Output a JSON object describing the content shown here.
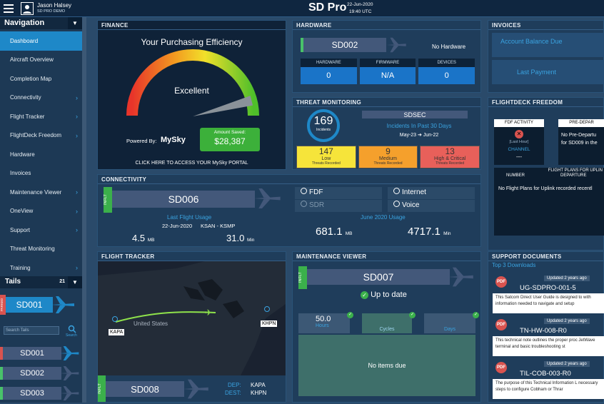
{
  "header": {
    "user_name": "Jason Halsey",
    "user_sub": "SD PRO DEMO",
    "brand": "SD Pro",
    "date": "22-Jun-2020",
    "time": "19:40 UTC"
  },
  "sidebar": {
    "title": "Navigation",
    "items": [
      {
        "label": "Dashboard",
        "active": true
      },
      {
        "label": "Aircraft Overview"
      },
      {
        "label": "Completion Map"
      },
      {
        "label": "Connectivity",
        "chev": true
      },
      {
        "label": "Flight Tracker",
        "chev": true
      },
      {
        "label": "FlightDeck Freedom",
        "chev": true
      },
      {
        "label": "Hardware"
      },
      {
        "label": "Invoices"
      },
      {
        "label": "Maintenance Viewer",
        "chev": true
      },
      {
        "label": "OneView",
        "chev": true
      },
      {
        "label": "Support",
        "chev": true
      },
      {
        "label": "Threat Monitoring"
      },
      {
        "label": "Training",
        "chev": true
      }
    ],
    "tails_title": "Tails",
    "tails_count": "21",
    "parked_tail": "SD001",
    "parked_label": "PARKED",
    "search_placeholder": "Search Tails",
    "search_label": "Search",
    "tails": [
      "SD001",
      "SD002",
      "SD003"
    ]
  },
  "finance": {
    "title": "FINANCE",
    "heading": "Your Purchasing Efficiency",
    "rating": "Excellent",
    "powered": "Powered By:",
    "brand": "MySky",
    "saved_label": "Amount Saved:",
    "saved_value": "$28,387",
    "portal": "CLICK HERE TO ACCESS YOUR MySky PORTAL",
    "gauge_level": 0.92
  },
  "hardware": {
    "title": "HARDWARE",
    "tail": "SD002",
    "status": "No Hardware",
    "cols": [
      {
        "h": "HARDWARE",
        "v": "0"
      },
      {
        "h": "FIRMWARE",
        "v": "N/A"
      },
      {
        "h": "DEVICES",
        "v": "0"
      }
    ]
  },
  "invoices": {
    "title": "INVOICES",
    "balance": "Account Balance Due",
    "last_payment": "Last Payment"
  },
  "threat": {
    "title": "THREAT MONITORING",
    "count": "169",
    "count_label": "Incidents",
    "tail": "SDSEC",
    "period": "Incidents In Past 30 Days",
    "from": "May-23",
    "to": "Jun-22",
    "levels": [
      {
        "v": "147",
        "l": "Low",
        "s": "Threats Recorded",
        "c": "#f6e43a"
      },
      {
        "v": "9",
        "l": "Medium",
        "s": "Threats Recorded",
        "c": "#f5a02c"
      },
      {
        "v": "13",
        "l": "High & Critical",
        "s": "Threats Recorded",
        "c": "#e8605a"
      }
    ]
  },
  "fdf": {
    "title": "FLIGHTDECK FREEDOM",
    "activity": "FDF ACTIVITY",
    "last_hour": "[Last Hour]",
    "channel": "CHANNEL",
    "channel_val": "---",
    "pre": "PRE-DEPAR",
    "pre_text": "No Pre-Departu for SD009 in the",
    "plans": "FLIGHT PLANS FOR UPLIN",
    "col_number": "NUMBER",
    "col_departure": "DEPARTURE",
    "no_plans": "No Flight Plans for Uplink recorded recentl"
  },
  "connectivity": {
    "title": "CONNECTIVITY",
    "tail": "SD006",
    "inflight": "INFLT",
    "last_usage": "Last Flight Usage",
    "date": "22-Jun-2020",
    "route": "KSAN - KSMP",
    "mb": "4.5",
    "mb_unit": "MB",
    "min": "31.0",
    "min_unit": "Min",
    "services": [
      {
        "l": "FDF",
        "on": true
      },
      {
        "l": "Internet",
        "on": true
      },
      {
        "l": "SDR",
        "on": false
      },
      {
        "l": "Voice",
        "on": true
      }
    ],
    "month": "June 2020 Usage",
    "month_mb": "681.1",
    "month_min": "4717.1"
  },
  "tracker": {
    "title": "FLIGHT TRACKER",
    "origin": "KAPA",
    "dest": "KHPN",
    "country": "United States",
    "tail": "SD008",
    "inflight": "INFLT",
    "dep_label": "DEP:",
    "dest_label": "DEST:"
  },
  "maint": {
    "title": "MAINTENANCE VIEWER",
    "tail": "SD007",
    "inflight": "INFLT",
    "status": "Up to date",
    "hours": "50.0",
    "hours_l": "Hours",
    "cycles_l": "Cycles",
    "days_l": "Days",
    "none": "No items due"
  },
  "support": {
    "title": "SUPPORT DOCUMENTS",
    "top": "Top 3 Downloads",
    "docs": [
      {
        "updated": "Updated 2 years ago",
        "name": "UG-SDPRO-001-5",
        "desc": "This Satcom Direct User Guide is designed to with information needed to navigate and setup"
      },
      {
        "updated": "Updated 2 years ago",
        "name": "TN-HW-008-R0",
        "desc": "This technical note outlines the proper proc JetWave terminal and basic troubleshooting st"
      },
      {
        "updated": "Updated 2 years ago",
        "name": "TIL-COB-003-R0",
        "desc": "The purpose of this Technical Information L necessary steps to configure Cobham or Thrar"
      }
    ]
  }
}
